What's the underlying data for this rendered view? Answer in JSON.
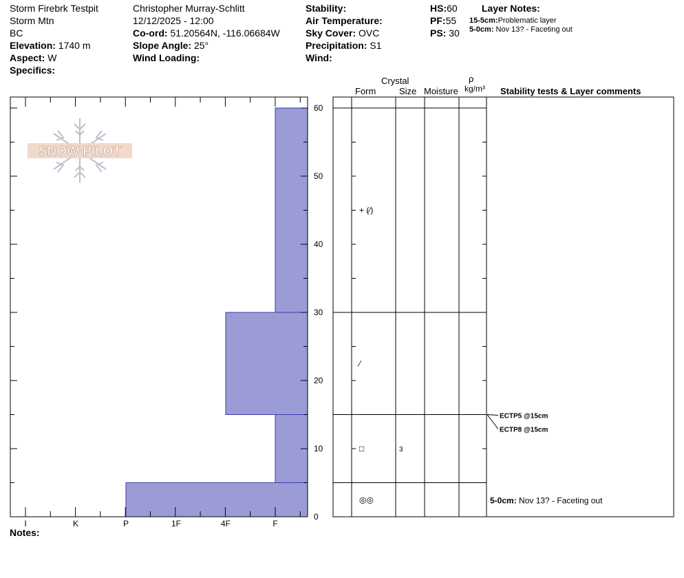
{
  "header": {
    "col1": {
      "name": "Storm Firebrk Testpit",
      "location": "Storm Mtn",
      "region": "BC",
      "elevation_label": "Elevation:",
      "elevation_value": "1740 m",
      "aspect_label": "Aspect:",
      "aspect_value": "W",
      "specifics_label": "Specifics:"
    },
    "col2": {
      "observer": "Christopher Murray-Schlitt",
      "datetime": "12/12/2025 - 12:00",
      "coord_label": "Co-ord:",
      "coord_value": "51.20564N, -116.06684W",
      "slope_label": "Slope Angle:",
      "slope_value": "25°",
      "wind_loading_label": "Wind Loading:"
    },
    "col3": {
      "stability_label": "Stability:",
      "air_temp_label": "Air Temperature:",
      "sky_label": "Sky Cover:",
      "sky_value": "OVC",
      "precip_label": "Precipitation:",
      "precip_value": "S1",
      "wind_label": "Wind:"
    },
    "col4": {
      "hs_label": "HS:",
      "hs_value": "60",
      "pf_label": "PF:",
      "pf_value": "55",
      "ps_label": "PS:",
      "ps_value": "30"
    },
    "layer_notes": {
      "title": "Layer Notes:",
      "items": [
        {
          "label": "15-5cm:",
          "text": "Problematic layer"
        },
        {
          "label": "5-0cm:",
          "text": "Nov 13? - Faceting out"
        }
      ]
    }
  },
  "logo": {
    "text": "SNOW PILOT"
  },
  "table_headers": {
    "crystal": "Crystal",
    "form": "Form",
    "size": "Size",
    "moisture": "Moisture",
    "rho": "ρ",
    "density_unit": "kg/m³",
    "comments": "Stability tests & Layer comments"
  },
  "notes_label": "Notes:",
  "chart_data": {
    "type": "bar",
    "orientation": "horizontal-profile",
    "y_axis": {
      "label": "",
      "range": [
        0,
        60
      ],
      "ticks": [
        0,
        10,
        20,
        30,
        40,
        50,
        60
      ]
    },
    "x_axis": {
      "label": "",
      "categories": [
        "I",
        "K",
        "P",
        "1F",
        "4F",
        "F"
      ]
    },
    "hardness_layers": [
      {
        "top": 60,
        "bottom": 30,
        "hardness": "F"
      },
      {
        "top": 30,
        "bottom": 15,
        "hardness": "4F"
      },
      {
        "top": 15,
        "bottom": 5,
        "hardness": "F"
      },
      {
        "top": 5,
        "bottom": 0,
        "hardness": "P"
      }
    ],
    "layer_boundaries": [
      60,
      30,
      15,
      5,
      0
    ],
    "crystals": [
      {
        "depth": 45,
        "form": "+ (⁄)",
        "size": ""
      },
      {
        "depth": 22.5,
        "form": "⁄",
        "size": ""
      },
      {
        "depth": 10,
        "form": "□",
        "size": "3"
      },
      {
        "depth": 2.5,
        "form": "◎◎",
        "size": ""
      }
    ],
    "stability_tests": [
      {
        "depth": 15,
        "label": "ECTP5 @15cm"
      },
      {
        "depth": 15,
        "label": "ECTP8 @15cm"
      }
    ],
    "layer_comments": [
      {
        "depth": 2.5,
        "label": "5-0cm:",
        "text": "Nov 13? - Faceting out"
      }
    ],
    "colors": {
      "bar_fill": "#9b9bd6",
      "bar_stroke": "#3b3bb0"
    }
  }
}
